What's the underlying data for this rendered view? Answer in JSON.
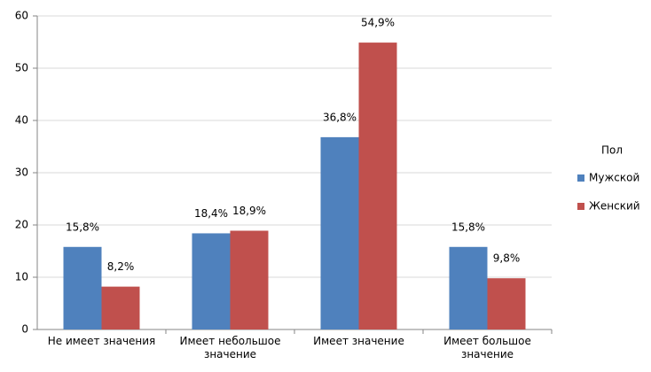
{
  "chart_data": {
    "type": "bar",
    "categories": [
      "Не имеет значения",
      "Имеет небольшое значение",
      "Имеет значение",
      "Имеет большое значение"
    ],
    "series": [
      {
        "name": "Мужской",
        "color": "#4f81bd",
        "values": [
          15.8,
          18.4,
          36.8,
          15.8
        ],
        "value_labels": [
          "15,8%",
          "18,4%",
          "36,8%",
          "15,8%"
        ]
      },
      {
        "name": "Женский",
        "color": "#c0504d",
        "values": [
          8.2,
          18.9,
          54.9,
          9.8
        ],
        "value_labels": [
          "8,2%",
          "18,9%",
          "54,9%",
          "9,8%"
        ]
      }
    ],
    "legend_title": "Пол",
    "legend_position": "right",
    "ylim": [
      0,
      60
    ],
    "yticks": [
      0,
      10,
      20,
      30,
      40,
      50,
      60
    ],
    "grid": true
  }
}
